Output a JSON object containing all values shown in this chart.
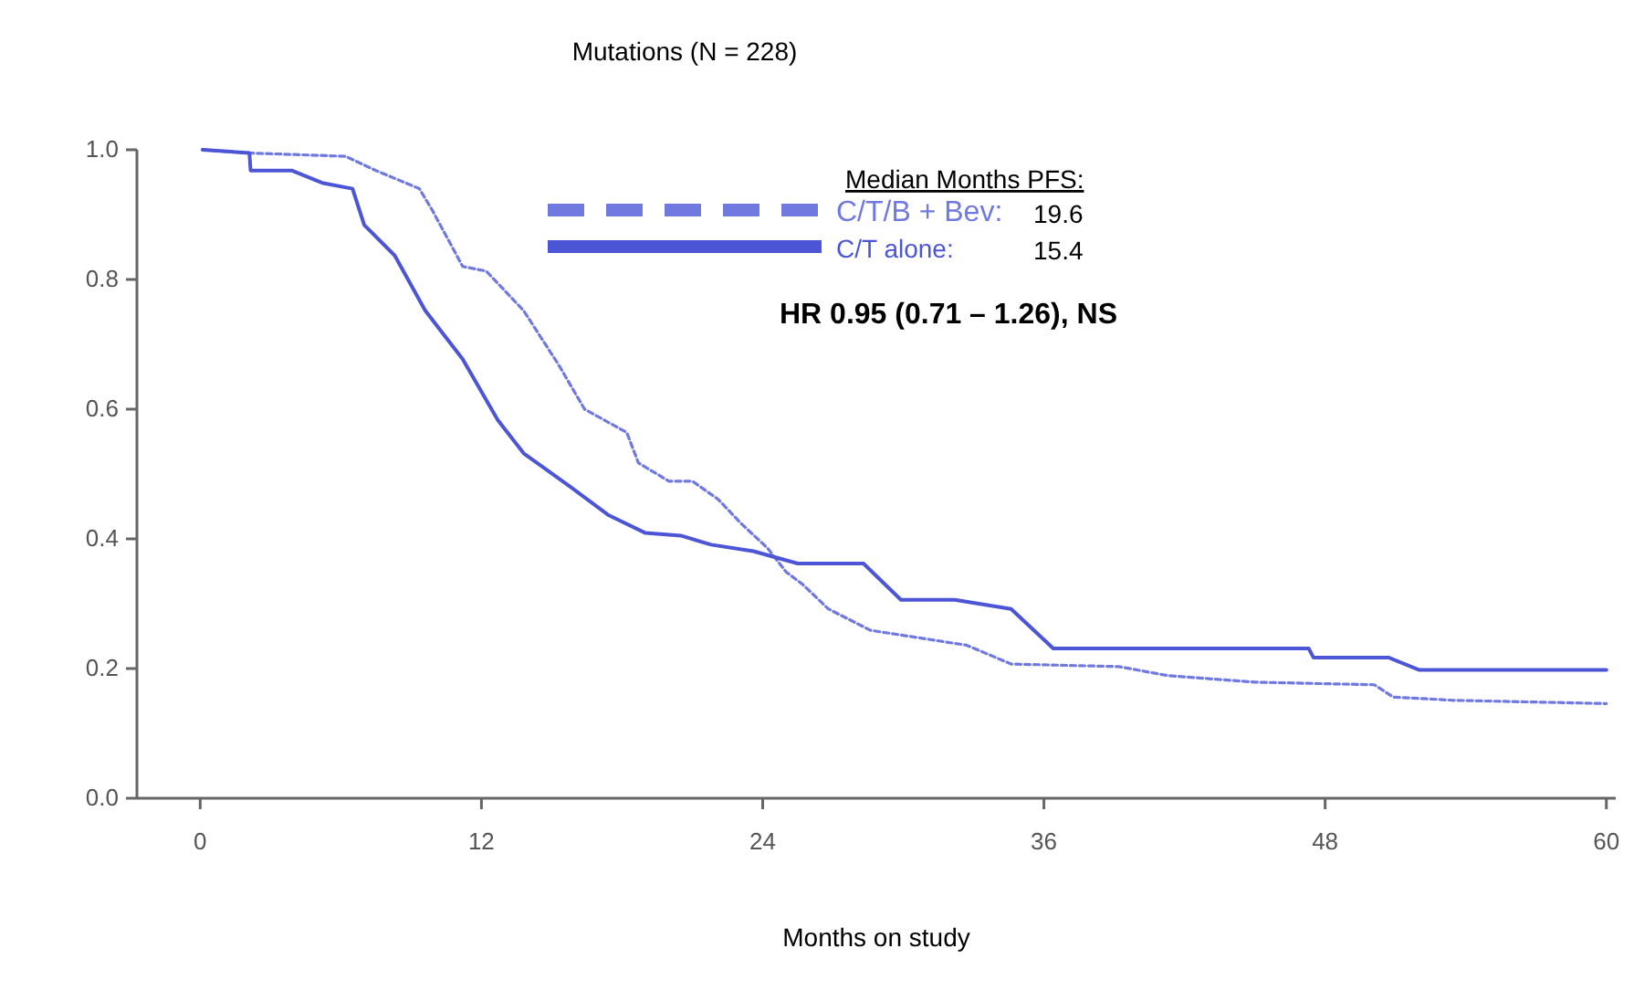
{
  "chart_data": {
    "type": "line",
    "title": "Mutations (N = 228)",
    "xlabel": "Months on study",
    "legend_title": "Median Months PFS:",
    "legend": "top right",
    "marker": "none",
    "grid": false,
    "xlim": [
      -2.7,
      60.4
    ],
    "xticks": [
      0,
      12,
      24,
      36,
      48,
      60
    ],
    "ylim": [
      0,
      1
    ],
    "yticks": [
      {
        "value": 0,
        "label": "0.0"
      },
      {
        "value": 0.2,
        "label": "0.2"
      },
      {
        "value": 0.4,
        "label": "0.4"
      },
      {
        "value": 0.6,
        "label": "0.6"
      },
      {
        "value": 0.8,
        "label": "0.8"
      },
      {
        "value": 1,
        "label": "1.0"
      }
    ],
    "annotations": [
      "HR 0.95 (0.71 – 1.26), NS",
      "19.6",
      "15.4"
    ],
    "series": [
      {
        "name": "C/T/B + Bev:",
        "color": "#7079e0",
        "line_style": "dashed",
        "x": [
          0.1,
          2.1,
          6.2,
          7.5,
          9.35,
          9.9,
          11.2,
          12.2,
          13.8,
          15.3,
          16.4,
          18.2,
          18.7,
          20.0,
          21.0,
          22.1,
          23.1,
          24.2,
          25.0,
          25.7,
          26.8,
          28.6,
          32.7,
          34.6,
          39.2,
          41.3,
          45.0,
          50.1,
          50.9,
          53.5,
          60
        ],
        "values": [
          1.0,
          0.995,
          0.99,
          0.968,
          0.94,
          0.907,
          0.82,
          0.813,
          0.752,
          0.668,
          0.6,
          0.564,
          0.517,
          0.489,
          0.489,
          0.461,
          0.423,
          0.386,
          0.349,
          0.33,
          0.292,
          0.259,
          0.236,
          0.207,
          0.203,
          0.189,
          0.179,
          0.175,
          0.156,
          0.151,
          0.146
        ]
      },
      {
        "name": "C/T alone:",
        "color": "#4b55d6",
        "line_style": "solid",
        "x": [
          0.1,
          2.1,
          2.15,
          3.9,
          5.2,
          6.5,
          7.0,
          8.3,
          9.6,
          11.2,
          12.7,
          13.8,
          15.8,
          17.4,
          19.0,
          20.5,
          21.8,
          23.6,
          25.5,
          28.3,
          29.9,
          32.2,
          34.6,
          36.4,
          47.3,
          47.5,
          50.7,
          52.0,
          60
        ],
        "values": [
          1.0,
          0.995,
          0.968,
          0.968,
          0.949,
          0.94,
          0.884,
          0.837,
          0.752,
          0.677,
          0.583,
          0.532,
          0.48,
          0.437,
          0.409,
          0.405,
          0.391,
          0.381,
          0.362,
          0.362,
          0.306,
          0.306,
          0.292,
          0.231,
          0.231,
          0.217,
          0.217,
          0.198,
          0.198
        ]
      }
    ]
  }
}
